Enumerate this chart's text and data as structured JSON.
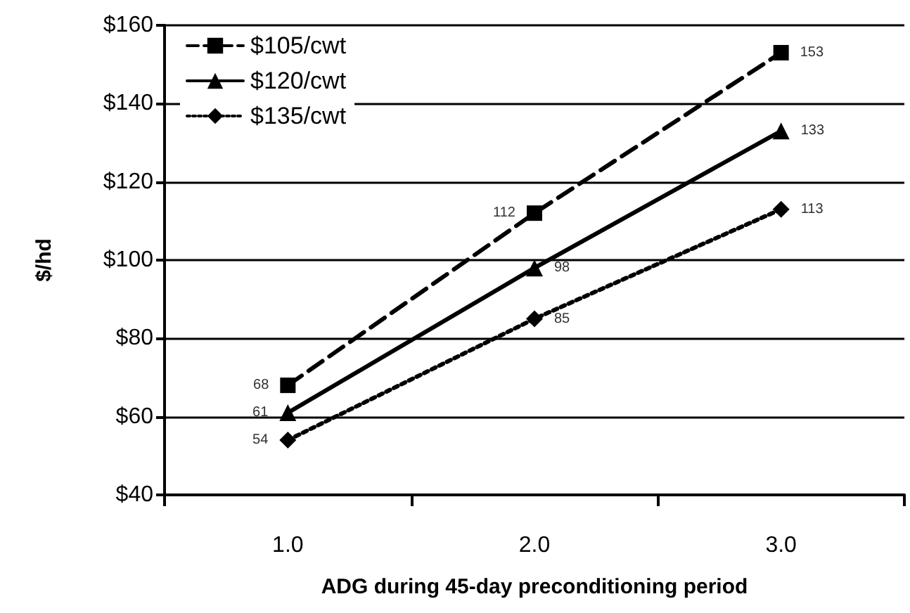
{
  "chart_data": {
    "type": "line",
    "xlabel": "ADG during 45-day preconditioning period",
    "ylabel": "$/hd",
    "categories": [
      "1.0",
      "2.0",
      "3.0"
    ],
    "series": [
      {
        "name": "$105/cwt",
        "color": "#000000",
        "values": [
          68,
          112,
          153
        ],
        "marker": "square",
        "line_style": "dashed"
      },
      {
        "name": "$120/cwt",
        "color": "#000000",
        "values": [
          61,
          98,
          133
        ],
        "marker": "triangle",
        "line_style": "solid"
      },
      {
        "name": "$135/cwt",
        "color": "#000000",
        "values": [
          54,
          85,
          113
        ],
        "marker": "diamond",
        "line_style": "dotted"
      }
    ],
    "ylim": [
      40,
      160
    ],
    "yticks": [
      {
        "value": 40,
        "label": "$40"
      },
      {
        "value": 60,
        "label": "$60"
      },
      {
        "value": 80,
        "label": "$80"
      },
      {
        "value": 100,
        "label": "$100"
      },
      {
        "value": 120,
        "label": "$120"
      },
      {
        "value": 140,
        "label": "$140"
      },
      {
        "value": 160,
        "label": "$160"
      }
    ],
    "grid": "y",
    "legend": "top left",
    "data_labels": true
  }
}
